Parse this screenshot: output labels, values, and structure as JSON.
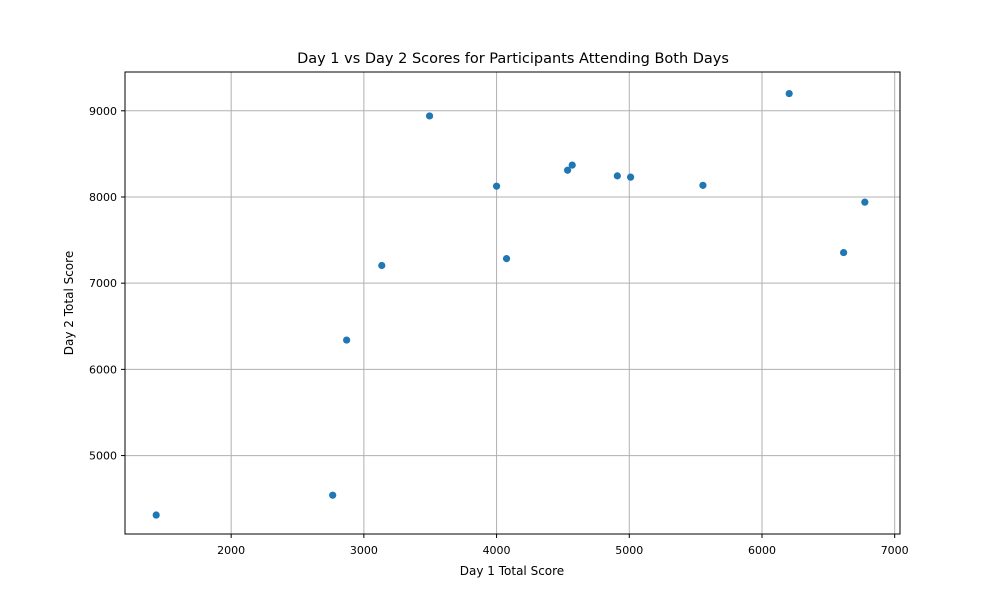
{
  "chart_data": {
    "type": "scatter",
    "title": "Day 1 vs Day 2 Scores for Participants Attending Both Days",
    "xlabel": "Day 1 Total Score",
    "ylabel": "Day 2 Total Score",
    "xlim": [
      1200,
      7040
    ],
    "ylim": [
      4090,
      9450
    ],
    "xticks": [
      2000,
      3000,
      4000,
      5000,
      6000,
      7000
    ],
    "yticks": [
      5000,
      6000,
      7000,
      8000,
      9000
    ],
    "grid": true,
    "point_color": "#1f77b4",
    "points": [
      {
        "x": 1435,
        "y": 4310
      },
      {
        "x": 2765,
        "y": 4540
      },
      {
        "x": 2870,
        "y": 6340
      },
      {
        "x": 3135,
        "y": 7205
      },
      {
        "x": 3495,
        "y": 8940
      },
      {
        "x": 4000,
        "y": 8125
      },
      {
        "x": 4075,
        "y": 7285
      },
      {
        "x": 4535,
        "y": 8310
      },
      {
        "x": 4570,
        "y": 8370
      },
      {
        "x": 4910,
        "y": 8245
      },
      {
        "x": 5010,
        "y": 8230
      },
      {
        "x": 5555,
        "y": 8135
      },
      {
        "x": 6205,
        "y": 9200
      },
      {
        "x": 6615,
        "y": 7355
      },
      {
        "x": 6775,
        "y": 7940
      }
    ]
  }
}
